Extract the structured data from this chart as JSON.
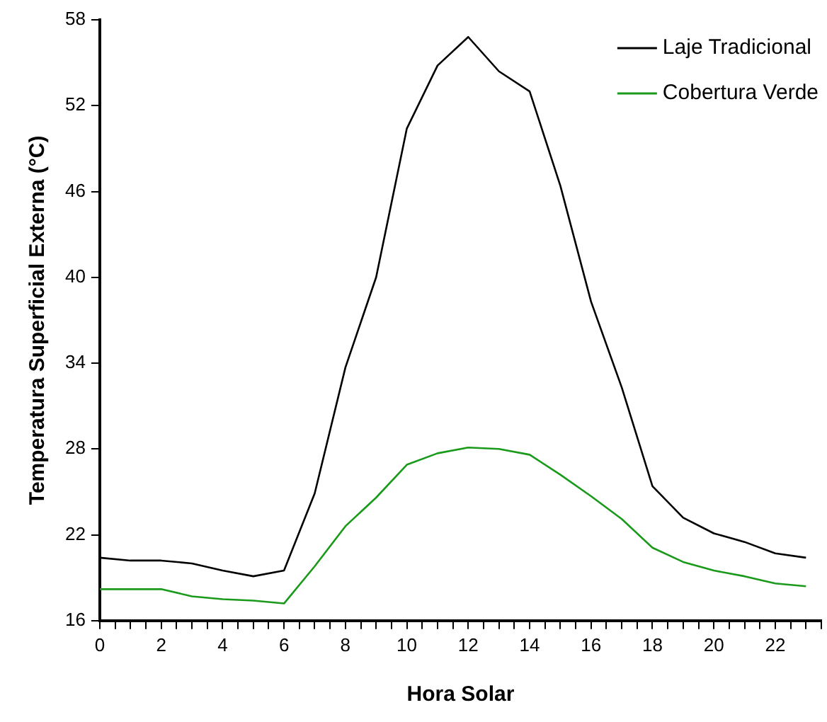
{
  "chart_data": {
    "type": "line",
    "xlabel": "Hora Solar",
    "ylabel": "Temperatura Superficial Externa (°C)",
    "x": [
      0,
      1,
      2,
      3,
      4,
      5,
      6,
      7,
      8,
      9,
      10,
      11,
      12,
      13,
      14,
      15,
      16,
      17,
      18,
      19,
      20,
      21,
      22,
      23
    ],
    "series": [
      {
        "name": "Laje Tradicional",
        "color": "#000000",
        "values": [
          20.4,
          20.2,
          20.2,
          20.0,
          19.5,
          19.1,
          19.5,
          24.9,
          33.7,
          40.0,
          50.4,
          54.8,
          56.8,
          54.4,
          53.0,
          46.4,
          38.3,
          32.3,
          25.4,
          23.2,
          22.1,
          21.5,
          20.7,
          20.4
        ]
      },
      {
        "name": "Cobertura Verde",
        "color": "#1a9a1a",
        "values": [
          18.2,
          18.2,
          18.2,
          17.7,
          17.5,
          17.4,
          17.2,
          19.8,
          22.6,
          24.6,
          26.9,
          27.7,
          28.1,
          28.0,
          27.6,
          26.2,
          24.7,
          23.1,
          21.1,
          20.1,
          19.5,
          19.1,
          18.6,
          18.4
        ]
      }
    ],
    "xlim": [
      0,
      23.5
    ],
    "xticks": [
      0,
      {
        "value": 0.5,
        "label": null
      },
      {
        "value": 1,
        "label": null
      },
      {
        "value": 1.5,
        "label": null
      },
      2,
      {
        "value": 2.5,
        "label": null
      },
      {
        "value": 3,
        "label": null
      },
      {
        "value": 3.5,
        "label": null
      },
      4,
      {
        "value": 4.5,
        "label": null
      },
      {
        "value": 5,
        "label": null
      },
      {
        "value": 5.5,
        "label": null
      },
      6,
      {
        "value": 6.5,
        "label": null
      },
      {
        "value": 7,
        "label": null
      },
      {
        "value": 7.5,
        "label": null
      },
      8,
      {
        "value": 8.5,
        "label": null
      },
      {
        "value": 9,
        "label": null
      },
      {
        "value": 9.5,
        "label": null
      },
      10,
      {
        "value": 10.5,
        "label": null
      },
      {
        "value": 11,
        "label": null
      },
      {
        "value": 11.5,
        "label": null
      },
      12,
      {
        "value": 12.5,
        "label": null
      },
      {
        "value": 13,
        "label": null
      },
      {
        "value": 13.5,
        "label": null
      },
      14,
      {
        "value": 14.5,
        "label": null
      },
      {
        "value": 15,
        "label": null
      },
      {
        "value": 15.5,
        "label": null
      },
      16,
      {
        "value": 16.5,
        "label": null
      },
      {
        "value": 17,
        "label": null
      },
      {
        "value": 17.5,
        "label": null
      },
      18,
      {
        "value": 18.5,
        "label": null
      },
      {
        "value": 19,
        "label": null
      },
      {
        "value": 19.5,
        "label": null
      },
      20,
      {
        "value": 20.5,
        "label": null
      },
      {
        "value": 21,
        "label": null
      },
      {
        "value": 21.5,
        "label": null
      },
      22,
      {
        "value": 22.5,
        "label": null
      },
      {
        "value": 23,
        "label": null
      },
      {
        "value": 23.5,
        "label": null
      }
    ],
    "ylim": [
      16,
      58
    ],
    "yticks": [
      16,
      22,
      28,
      34,
      40,
      46,
      52,
      58
    ],
    "grid": false,
    "legend": "top right",
    "marker": "none",
    "line_style": "solid"
  }
}
